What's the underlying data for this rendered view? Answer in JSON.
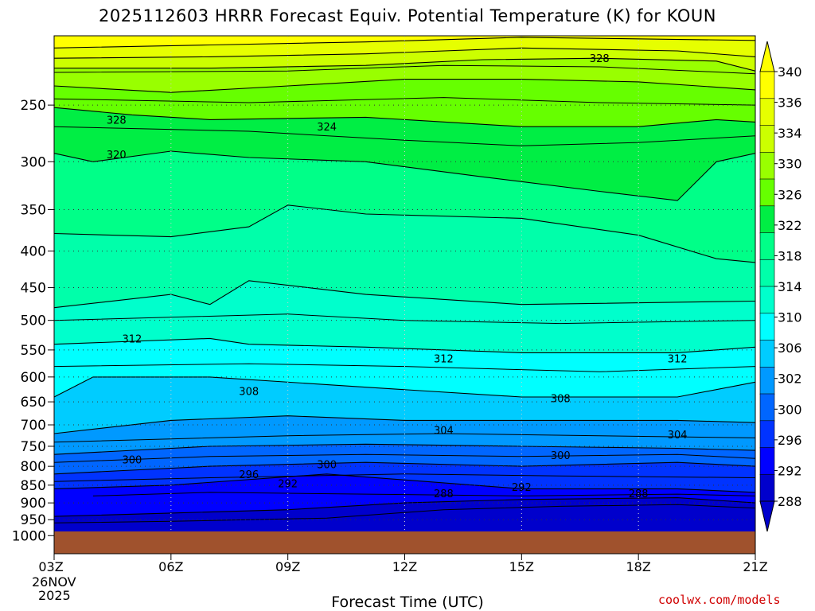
{
  "header": {
    "title": "2025112603 HRRR Forecast Equiv. Potential Temperature (K) for KOUN"
  },
  "footer": {
    "credit": "coolwx.com/models"
  },
  "chart_data": {
    "type": "heatmap",
    "title": "2025112603 HRRR Forecast Equiv. Potential Temperature (K) for KOUN",
    "xlabel": "Forecast Time (UTC)",
    "ylabel": "",
    "x_ticks": [
      "03Z",
      "06Z",
      "09Z",
      "12Z",
      "15Z",
      "18Z",
      "21Z"
    ],
    "x_start_date": [
      "26NOV",
      "2025"
    ],
    "y_ticks": [
      250,
      300,
      350,
      400,
      450,
      500,
      550,
      600,
      650,
      700,
      750,
      800,
      850,
      900,
      950,
      1000
    ],
    "y_scale": "log",
    "ylim": [
      1000,
      200
    ],
    "grid": true,
    "colorbar": {
      "labels": [
        340,
        336,
        334,
        330,
        326,
        322,
        318,
        314,
        310,
        306,
        302,
        300,
        296,
        292,
        288
      ],
      "colors": [
        "#ffff00",
        "#e6ff00",
        "#ccff00",
        "#99ff00",
        "#66ff00",
        "#00ee44",
        "#00ff88",
        "#00ffaa",
        "#00ffcc",
        "#00ffff",
        "#00ccff",
        "#0099ff",
        "#0066ff",
        "#0033ff",
        "#0000ff",
        "#0000cc"
      ]
    },
    "contour_labels": [
      {
        "value": "328",
        "time": "04-05Z",
        "pressure": 262
      },
      {
        "value": "328",
        "time": "17Z",
        "pressure": 215
      },
      {
        "value": "324",
        "time": "10Z",
        "pressure": 268
      },
      {
        "value": "320",
        "time": "04-05Z",
        "pressure": 293
      },
      {
        "value": "312",
        "time": "05Z",
        "pressure": 530
      },
      {
        "value": "312",
        "time": "13Z",
        "pressure": 565
      },
      {
        "value": "312",
        "time": "19Z",
        "pressure": 565
      },
      {
        "value": "308",
        "time": "08Z",
        "pressure": 628
      },
      {
        "value": "308",
        "time": "16Z",
        "pressure": 642
      },
      {
        "value": "304",
        "time": "13Z",
        "pressure": 712
      },
      {
        "value": "304",
        "time": "19Z",
        "pressure": 722
      },
      {
        "value": "300",
        "time": "05Z",
        "pressure": 782
      },
      {
        "value": "300",
        "time": "10Z",
        "pressure": 795
      },
      {
        "value": "300",
        "time": "16Z",
        "pressure": 772
      },
      {
        "value": "296",
        "time": "08Z",
        "pressure": 820
      },
      {
        "value": "292",
        "time": "09Z",
        "pressure": 845
      },
      {
        "value": "292",
        "time": "15Z",
        "pressure": 855
      },
      {
        "value": "288",
        "time": "13Z",
        "pressure": 872
      },
      {
        "value": "288",
        "time": "18Z",
        "pressure": 873
      }
    ]
  }
}
